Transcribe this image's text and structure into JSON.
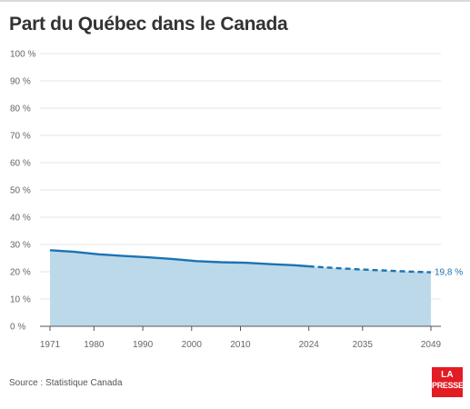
{
  "title": "Part du Québec dans le Canada",
  "source": "Source : Statistique Canada",
  "logo": {
    "line1": "LA",
    "line2": "PRESSE"
  },
  "colors": {
    "line": "#1b73b3",
    "area": "#bcd9ea",
    "grid": "#e6e6e6",
    "axis": "#555555",
    "logo": "#e31b23"
  },
  "chart_data": {
    "type": "area",
    "ylim": [
      0,
      100
    ],
    "y_ticks": [
      0,
      10,
      20,
      30,
      40,
      50,
      60,
      70,
      80,
      90,
      100
    ],
    "y_tick_labels": [
      "0 %",
      "10 %",
      "20 %",
      "30 %",
      "40 %",
      "50 %",
      "60 %",
      "70 %",
      "80 %",
      "90 %",
      "100 %"
    ],
    "xlim": [
      1971,
      2049
    ],
    "x_ticks": [
      1971,
      1980,
      1990,
      2000,
      2010,
      2024,
      2035,
      2049
    ],
    "x_tick_labels": [
      "1971",
      "1980",
      "1990",
      "2000",
      "2010",
      "2024",
      "2035",
      "2049"
    ],
    "grid": true,
    "series": [
      {
        "style": "solid",
        "x": [
          1971,
          1976,
          1981,
          1986,
          1991,
          1996,
          2001,
          2006,
          2011,
          2016,
          2021,
          2024
        ],
        "y": [
          27.9,
          27.3,
          26.4,
          25.8,
          25.3,
          24.7,
          23.9,
          23.5,
          23.3,
          22.8,
          22.4,
          22.0
        ]
      },
      {
        "style": "dashed",
        "x": [
          2024,
          2029,
          2034,
          2039,
          2044,
          2049
        ],
        "y": [
          22.0,
          21.4,
          20.9,
          20.5,
          20.1,
          19.8
        ]
      }
    ],
    "end_label": "19,8 %"
  }
}
